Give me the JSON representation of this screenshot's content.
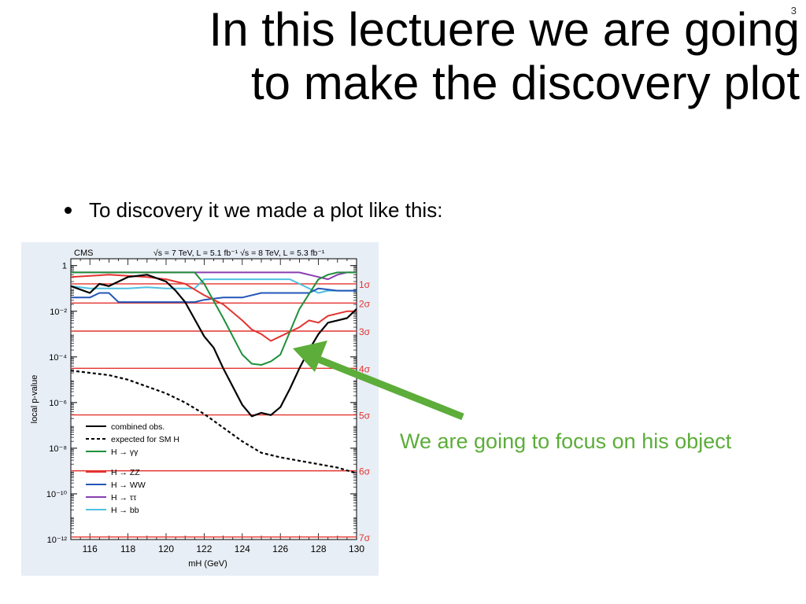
{
  "slide": {
    "page_number": "3",
    "title_line1": "In this lectuere we are going",
    "title_line2": "to make the discovery plot",
    "bullet": "To discovery it we made a plot like this:",
    "annotation": "We are going to focus on his object",
    "annotation_color": "#5cad3a"
  },
  "chart_data": {
    "type": "line",
    "experiment_label": "CMS",
    "header_label": "√s = 7 TeV, L = 5.1 fb⁻¹ √s = 8 TeV, L = 5.3 fb⁻¹",
    "xlabel": "mH (GeV)",
    "ylabel": "local p-value",
    "xlim": [
      115,
      130
    ],
    "ylim_log10": [
      -12,
      0.3
    ],
    "log_y": true,
    "x_ticks": [
      "116",
      "118",
      "120",
      "122",
      "124",
      "126",
      "128",
      "130"
    ],
    "y_ticks": [
      {
        "exp": 0,
        "label": "1"
      },
      {
        "exp": -2,
        "label": "10⁻²"
      },
      {
        "exp": -4,
        "label": "10⁻⁴"
      },
      {
        "exp": -6,
        "label": "10⁻⁶"
      },
      {
        "exp": -8,
        "label": "10⁻⁸"
      },
      {
        "exp": -10,
        "label": "10⁻¹⁰"
      },
      {
        "exp": -12,
        "label": "10⁻¹²"
      }
    ],
    "sigma_lines": [
      {
        "label": "1σ",
        "log10p": -0.8
      },
      {
        "label": "2σ",
        "log10p": -1.64
      },
      {
        "label": "3σ",
        "log10p": -2.87
      },
      {
        "label": "4σ",
        "log10p": -4.5
      },
      {
        "label": "5σ",
        "log10p": -6.54
      },
      {
        "label": "6σ",
        "log10p": -8.99
      },
      {
        "label": "7σ",
        "log10p": -11.89
      }
    ],
    "legend_position": "bottom-left",
    "series": [
      {
        "name": "combined obs.",
        "color": "#000000",
        "dash": false,
        "x": [
          115,
          116,
          116.5,
          117,
          118,
          119,
          120,
          120.5,
          121,
          122,
          122.5,
          123,
          124,
          124.5,
          125,
          125.5,
          126,
          126.5,
          127,
          127.5,
          128,
          128.5,
          129,
          129.5,
          130
        ],
        "log10p": [
          -0.9,
          -1.2,
          -0.8,
          -0.9,
          -0.5,
          -0.4,
          -0.7,
          -1.1,
          -1.6,
          -3.1,
          -3.6,
          -4.5,
          -6.1,
          -6.6,
          -6.45,
          -6.55,
          -6.2,
          -5.4,
          -4.5,
          -3.7,
          -3.0,
          -2.5,
          -2.4,
          -2.3,
          -1.9
        ]
      },
      {
        "name": "expected for SM H",
        "color": "#000000",
        "dash": true,
        "x": [
          115,
          116,
          117,
          118,
          119,
          120,
          121,
          122,
          123,
          124,
          125,
          126,
          127,
          128,
          129,
          130
        ],
        "log10p": [
          -4.6,
          -4.7,
          -4.8,
          -5.0,
          -5.3,
          -5.6,
          -6.0,
          -6.5,
          -7.1,
          -7.7,
          -8.2,
          -8.4,
          -8.55,
          -8.7,
          -8.85,
          -9.1
        ]
      },
      {
        "name": "H → γγ",
        "color": "#1f8f3a",
        "dash": false,
        "x": [
          115,
          116,
          118,
          120,
          121,
          121.5,
          122,
          123,
          124,
          124.5,
          125,
          125.5,
          126,
          126.5,
          127,
          128,
          128.5,
          129,
          130
        ],
        "log10p": [
          -0.3,
          -0.3,
          -0.3,
          -0.3,
          -0.3,
          -0.3,
          -0.8,
          -2.3,
          -3.9,
          -4.3,
          -4.35,
          -4.2,
          -3.9,
          -2.9,
          -1.9,
          -0.6,
          -0.4,
          -0.3,
          -0.3
        ]
      },
      {
        "name": "H → ZZ",
        "color": "#e3342f",
        "dash": false,
        "x": [
          115,
          116,
          117,
          118,
          119,
          120,
          121,
          122,
          123,
          124,
          124.5,
          125,
          125.5,
          126,
          127,
          127.5,
          128,
          128.5,
          129,
          129.5,
          130
        ],
        "log10p": [
          -0.5,
          -0.45,
          -0.4,
          -0.45,
          -0.5,
          -0.6,
          -0.8,
          -1.3,
          -1.7,
          -2.4,
          -2.8,
          -3.0,
          -3.3,
          -3.1,
          -2.7,
          -2.4,
          -2.5,
          -2.2,
          -2.1,
          -2.0,
          -2.0
        ]
      },
      {
        "name": "H → WW",
        "color": "#2456b8",
        "dash": false,
        "x": [
          115,
          116,
          116.5,
          117,
          117.5,
          118,
          120,
          121,
          121.5,
          122,
          123,
          124,
          125,
          126,
          127,
          127.5,
          128,
          129,
          130
        ],
        "log10p": [
          -1.4,
          -1.4,
          -1.2,
          -1.2,
          -1.6,
          -1.6,
          -1.6,
          -1.6,
          -1.6,
          -1.5,
          -1.4,
          -1.4,
          -1.2,
          -1.2,
          -1.2,
          -1.2,
          -1.0,
          -1.1,
          -1.1
        ]
      },
      {
        "name": "H → ττ",
        "color": "#8a3fb0",
        "dash": false,
        "x": [
          115,
          116,
          118,
          120,
          121,
          122,
          124,
          126,
          126.5,
          127,
          128,
          128.5,
          129,
          129.5,
          130
        ],
        "log10p": [
          -0.3,
          -0.3,
          -0.3,
          -0.3,
          -0.3,
          -0.3,
          -0.3,
          -0.3,
          -0.3,
          -0.3,
          -0.5,
          -0.6,
          -0.4,
          -0.3,
          -0.3
        ]
      },
      {
        "name": "H → bb",
        "color": "#4fc0e0",
        "dash": false,
        "x": [
          115,
          116,
          117,
          118,
          119,
          120,
          121,
          121.5,
          122,
          123,
          124,
          125,
          126,
          126.5,
          127,
          127.5,
          128,
          128.5,
          129,
          129.5,
          130
        ],
        "log10p": [
          -0.9,
          -1.0,
          -1.0,
          -1.0,
          -0.95,
          -1.0,
          -1.0,
          -1.0,
          -0.6,
          -0.6,
          -0.6,
          -0.6,
          -0.6,
          -0.6,
          -0.8,
          -1.0,
          -1.2,
          -1.1,
          -1.1,
          -1.1,
          -1.1
        ]
      }
    ]
  }
}
